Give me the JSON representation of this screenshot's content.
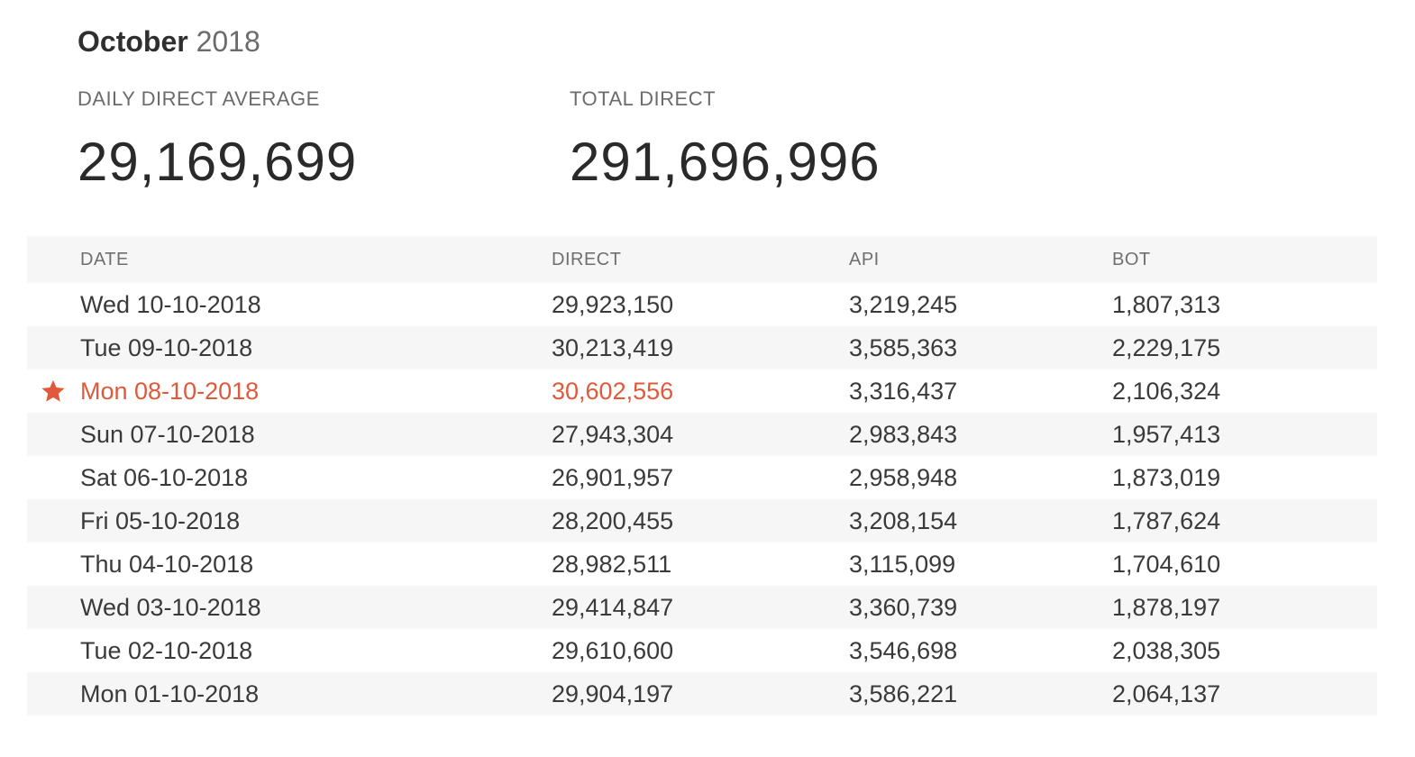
{
  "heading": {
    "month": "October",
    "year": "2018"
  },
  "stats": {
    "daily_direct_average": {
      "label": "DAILY DIRECT AVERAGE",
      "value": "29,169,699"
    },
    "total_direct": {
      "label": "TOTAL DIRECT",
      "value": "291,696,996"
    }
  },
  "table": {
    "columns": {
      "date": "DATE",
      "direct": "DIRECT",
      "api": "API",
      "bot": "BOT"
    },
    "rows": [
      {
        "date": "Wed 10-10-2018",
        "direct": "29,923,150",
        "api": "3,219,245",
        "bot": "1,807,313"
      },
      {
        "date": "Tue 09-10-2018",
        "direct": "30,213,419",
        "api": "3,585,363",
        "bot": "2,229,175"
      },
      {
        "date": "Mon 08-10-2018",
        "direct": "30,602,556",
        "api": "3,316,437",
        "bot": "2,106,324"
      },
      {
        "date": "Sun 07-10-2018",
        "direct": "27,943,304",
        "api": "2,983,843",
        "bot": "1,957,413"
      },
      {
        "date": "Sat 06-10-2018",
        "direct": "26,901,957",
        "api": "2,958,948",
        "bot": "1,873,019"
      },
      {
        "date": "Fri 05-10-2018",
        "direct": "28,200,455",
        "api": "3,208,154",
        "bot": "1,787,624"
      },
      {
        "date": "Thu 04-10-2018",
        "direct": "28,982,511",
        "api": "3,115,099",
        "bot": "1,704,610"
      },
      {
        "date": "Wed 03-10-2018",
        "direct": "29,414,847",
        "api": "3,360,739",
        "bot": "1,878,197"
      },
      {
        "date": "Tue 02-10-2018",
        "direct": "29,610,600",
        "api": "3,546,698",
        "bot": "2,038,305"
      },
      {
        "date": "Mon 01-10-2018",
        "direct": "29,904,197",
        "api": "3,586,221",
        "bot": "2,064,137"
      }
    ],
    "highlight_icon": "star-icon"
  },
  "colors": {
    "highlight": "#e0593b",
    "stripe": "#f6f6f6",
    "text": "#333333",
    "muted": "#6b6b6b"
  }
}
